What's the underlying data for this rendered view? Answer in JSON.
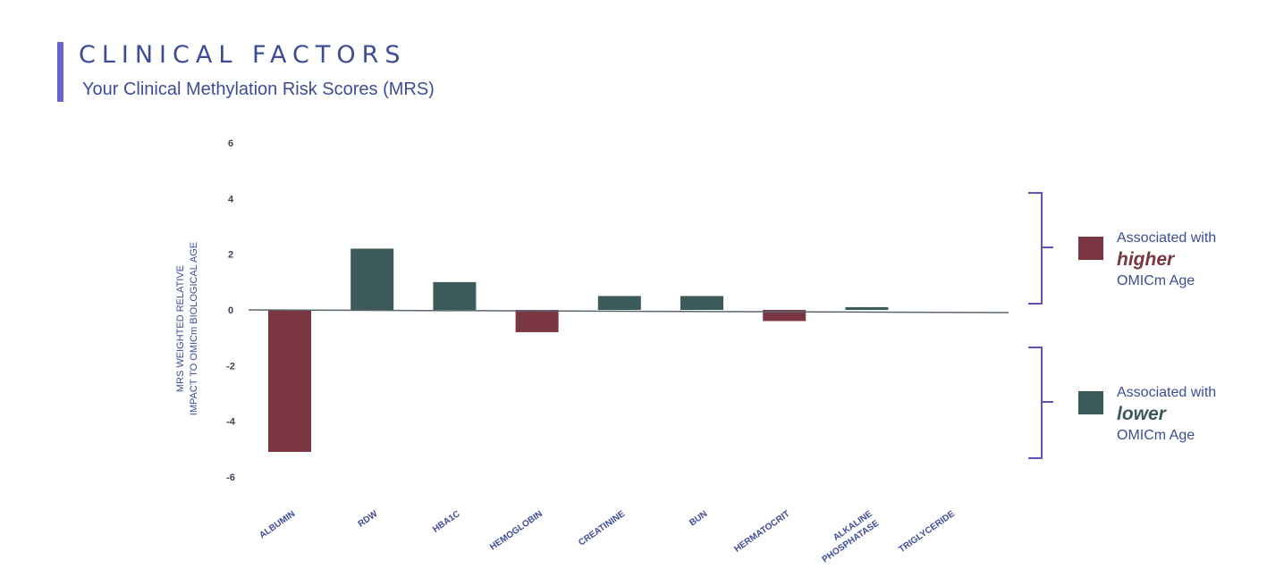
{
  "header": {
    "title": "CLINICAL FACTORS",
    "subtitle": "Your Clinical Methylation Risk Scores (MRS)"
  },
  "legend": {
    "higher": {
      "line1": "Associated with",
      "emphasis": "higher",
      "line3": "OMICm Age",
      "color": "#7a3742"
    },
    "lower": {
      "line1": "Associated with",
      "emphasis": "lower",
      "line3": "OMICm Age",
      "color": "#3d5a5a"
    }
  },
  "chart_data": {
    "type": "bar",
    "title": "",
    "ylabel_line1": "MRS WEIGHTED RELATIVE",
    "ylabel_line2": "IMPACT TO OMICm BIOLOGICAL AGE",
    "xlabel": "",
    "ylim": [
      -6,
      6
    ],
    "yticks": [
      6,
      4,
      2,
      0,
      -2,
      -4,
      -6
    ],
    "categories": [
      [
        "ALBUMIN"
      ],
      [
        "RDW"
      ],
      [
        "HBA1C"
      ],
      [
        "HEMOGLOBIN"
      ],
      [
        "CREATININE"
      ],
      [
        "BUN"
      ],
      [
        "HERMATOCRIT"
      ],
      [
        "ALKALINE",
        "PHOSPHATASE"
      ],
      [
        "TRIGLYCERIDE"
      ]
    ],
    "values": [
      -5.1,
      2.2,
      1.0,
      -0.8,
      0.5,
      0.5,
      -0.4,
      0.1,
      0.0
    ],
    "colors": {
      "positive": "#3d5a5a",
      "negative": "#7a3742"
    },
    "grid": false,
    "legend_position": "right"
  }
}
